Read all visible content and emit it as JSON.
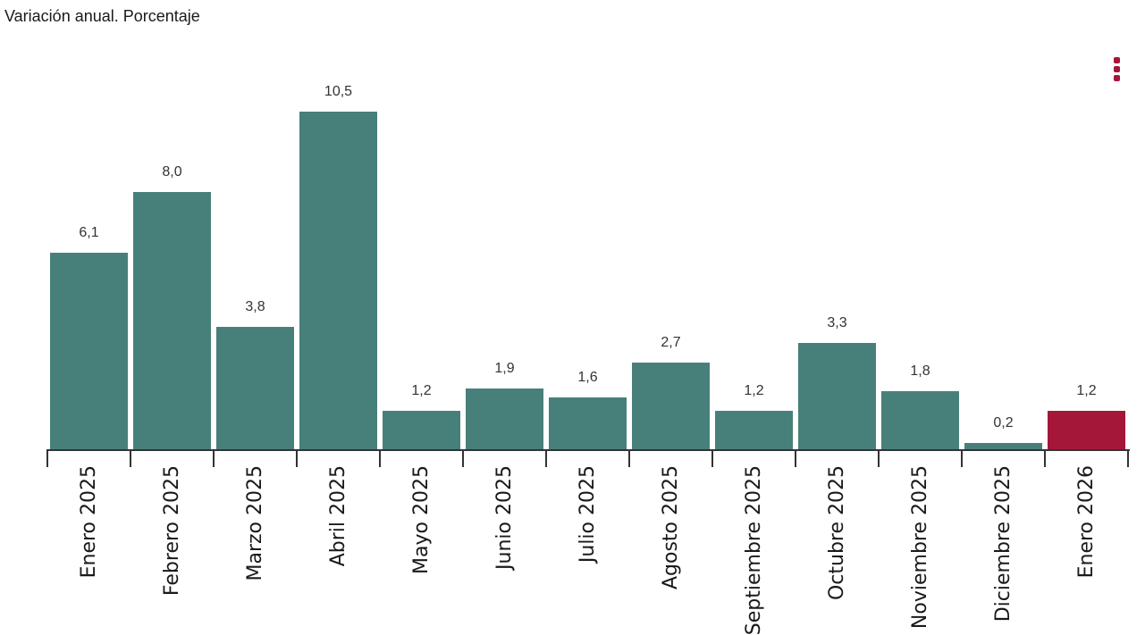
{
  "title": "Variación anual. Porcentaje",
  "icons": {
    "menu": "kebab-menu-icon"
  },
  "colors": {
    "bar": "#47807A",
    "bar_highlight": "#A41739",
    "menu_icon": "#A41739",
    "axis": "#333333",
    "value_label": "#333333",
    "x_label": "#1A1A1A",
    "background": "#FFFFFF"
  },
  "chart_data": {
    "type": "bar",
    "title": "Variación anual. Porcentaje",
    "categories": [
      "Enero 2025",
      "Febrero 2025",
      "Marzo 2025",
      "Abril 2025",
      "Mayo 2025",
      "Junio 2025",
      "Julio 2025",
      "Agosto 2025",
      "Septiembre 2025",
      "Octubre 2025",
      "Noviembre 2025",
      "Diciembre 2025",
      "Enero 2026"
    ],
    "values": [
      6.1,
      8.0,
      3.8,
      10.5,
      1.2,
      1.9,
      1.6,
      2.7,
      1.2,
      3.3,
      1.8,
      0.2,
      1.2
    ],
    "value_labels": [
      "6,1",
      "8,0",
      "3,8",
      "10,5",
      "1,2",
      "1,9",
      "1,6",
      "2,7",
      "1,2",
      "3,3",
      "1,8",
      "0,2",
      "1,2"
    ],
    "highlight_index": 12,
    "xlabel": "",
    "ylabel": "",
    "ylim": [
      0,
      12
    ],
    "grid": false,
    "legend": "none",
    "x_tick_rotation": -90,
    "decimal_separator": ","
  }
}
